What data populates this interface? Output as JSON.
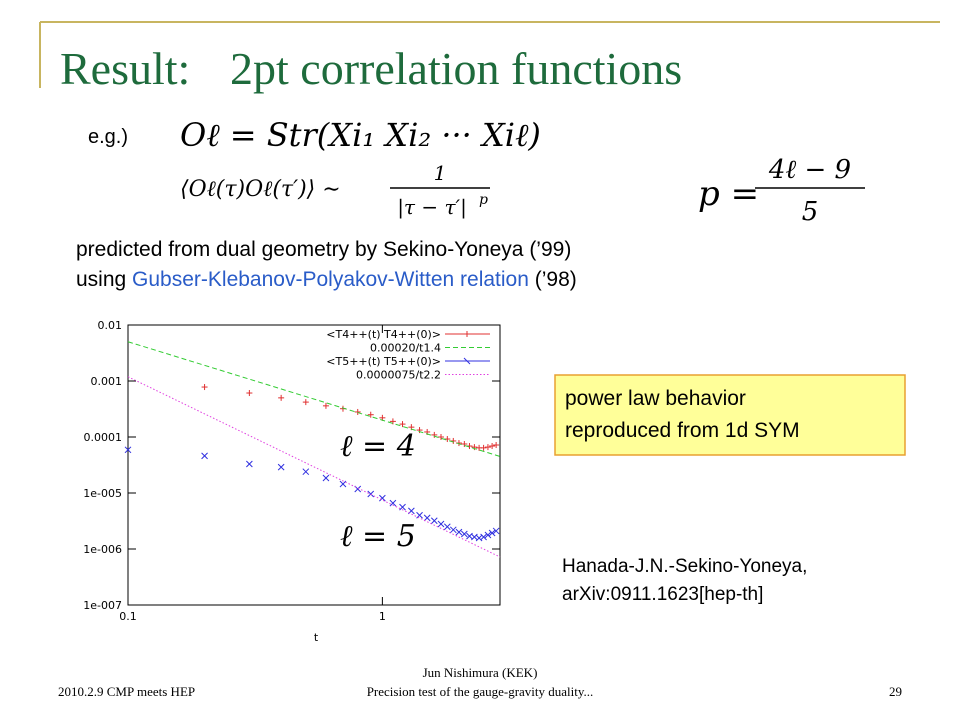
{
  "title": [
    "Result:",
    "2pt correlation functions"
  ],
  "example_label": "e.g.)",
  "formulas": {
    "operator": "Oℓ = Str(Xi₁ Xi₂ ··· Xiℓ)",
    "correlator": {
      "lhs": "⟨Oℓ(τ)Oℓ(τ′)⟩ ∼",
      "numerator": "1",
      "denominator": "|τ − τ′|",
      "exponent": "p"
    },
    "power": {
      "lhs": "p =",
      "numerator": "4ℓ − 9",
      "denominator": "5"
    }
  },
  "text_lines": [
    [
      "predicted from dual geometry by Sekino-Yoneya (’99)"
    ],
    [
      "using ",
      "Gubser-Klebanov-Polyakov-Witten relation",
      " (’98)"
    ]
  ],
  "callout": [
    "power law behavior",
    "reproduced from 1d SYM"
  ],
  "reference": [
    "Hanada-J.N.-Sekino-Yoneya,",
    "arXiv:0911.1623[hep-th]"
  ],
  "footer": {
    "left": "2010.2.9 CMP meets HEP",
    "center": [
      "Jun Nishimura (KEK)",
      "Precision test of the gauge-gravity duality..."
    ],
    "page": "29"
  },
  "chart_data": {
    "type": "scatter",
    "x_label": "t",
    "log_x": true,
    "log_y": true,
    "xlim": [
      0.1,
      2.9
    ],
    "ylim": [
      1e-07,
      0.01
    ],
    "xticks": [
      0.1,
      1
    ],
    "yticks": [
      0.01,
      0.001,
      0.0001,
      {
        "value": 1e-05,
        "label": "1e-005"
      },
      {
        "value": 1e-06,
        "label": "1e-006"
      },
      {
        "value": 1e-07,
        "label": "1e-007"
      }
    ],
    "legend": "top-right",
    "annotations": [
      "ℓ = 4",
      "ℓ = 5"
    ],
    "series": [
      {
        "name": "<T4++(t) T4++(0)>",
        "color": "#e03030",
        "style": "plus",
        "x": [
          0.2,
          0.3,
          0.4,
          0.5,
          0.6,
          0.7,
          0.8,
          0.9,
          1.0,
          1.1,
          1.2,
          1.3,
          1.4,
          1.5,
          1.6,
          1.7,
          1.8,
          1.9,
          2.0,
          2.1,
          2.2,
          2.3,
          2.4,
          2.5,
          2.6,
          2.7,
          2.8
        ],
        "values": [
          0.00078,
          0.00061,
          0.0005,
          0.00042,
          0.00036,
          0.00032,
          0.00028,
          0.00025,
          0.00022,
          0.00019,
          0.00017,
          0.00015,
          0.000133,
          0.000123,
          0.000109,
          0.0001,
          9.2e-05,
          8.5e-05,
          7.8e-05,
          7.5e-05,
          6.9e-05,
          6.6e-05,
          6.4e-05,
          6.4e-05,
          6.6e-05,
          6.9e-05,
          7.2e-05
        ]
      },
      {
        "name": "0.00020/t1.4",
        "color": "#33cc33",
        "style": "dashed",
        "x": [
          0.1,
          2.9
        ],
        "values": [
          0.005024,
          4.5e-05
        ]
      },
      {
        "name": "<T5++(t) T5++(0)>",
        "color": "#3030e0",
        "style": "cross",
        "x": [
          0.1,
          0.2,
          0.3,
          0.4,
          0.5,
          0.6,
          0.7,
          0.8,
          0.9,
          1.0,
          1.1,
          1.2,
          1.3,
          1.4,
          1.5,
          1.6,
          1.7,
          1.8,
          1.9,
          2.0,
          2.1,
          2.2,
          2.3,
          2.4,
          2.5,
          2.6,
          2.7,
          2.8
        ],
        "values": [
          5.9e-05,
          4.6e-05,
          3.3e-05,
          2.9e-05,
          2.4e-05,
          1.85e-05,
          1.45e-05,
          1.18e-05,
          9.6e-06,
          8.1e-06,
          6.6e-06,
          5.6e-06,
          4.8e-06,
          4e-06,
          3.6e-06,
          3.2e-06,
          2.8e-06,
          2.5e-06,
          2.2e-06,
          2e-06,
          1.85e-06,
          1.7e-06,
          1.64e-06,
          1.57e-06,
          1.64e-06,
          1.78e-06,
          1.93e-06,
          2.1e-06
        ]
      },
      {
        "name": "0.0000075/t2.2",
        "color": "#e040e0",
        "style": "dotted",
        "x": [
          0.1,
          2.9
        ],
        "values": [
          0.00119,
          7.2e-07
        ]
      }
    ]
  }
}
